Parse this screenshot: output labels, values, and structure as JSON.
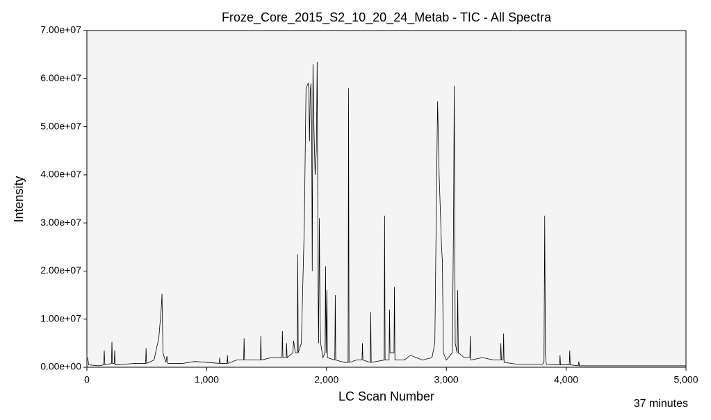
{
  "chart_data": {
    "type": "line",
    "title": "Froze_Core_2015_S2_10_20_24_Metab - TIC - All Spectra",
    "x_label": "LC Scan Number",
    "y_label": "Intensity",
    "annotation": "37 minutes",
    "color": "#000000",
    "background": "#f4f4f4",
    "xlim": [
      0,
      5000
    ],
    "xticks": [
      0,
      {
        "value": 1000,
        "label": "1,000"
      },
      {
        "value": 2000,
        "label": "2,000"
      },
      {
        "value": 3000,
        "label": "3,000"
      },
      {
        "value": 4000,
        "label": "4,000"
      },
      {
        "value": 5000,
        "label": "5,000"
      }
    ],
    "ylim": [
      0,
      70000000.0
    ],
    "yticks": [
      {
        "value": 0,
        "label": "0.00e+00"
      },
      {
        "value": 10000000.0,
        "label": "1.00e+07"
      },
      {
        "value": 20000000.0,
        "label": "2.00e+07"
      },
      {
        "value": 30000000.0,
        "label": "3.00e+07"
      },
      {
        "value": 40000000.0,
        "label": "4.00e+07"
      },
      {
        "value": 50000000.0,
        "label": "5.00e+07"
      },
      {
        "value": 60000000.0,
        "label": "6.00e+07"
      },
      {
        "value": 70000000.0,
        "label": "7.00e+07"
      }
    ],
    "x": [
      0,
      8,
      15,
      100,
      140,
      145,
      150,
      205,
      209,
      213,
      228,
      232,
      236,
      300,
      400,
      490,
      494,
      498,
      560,
      600,
      620,
      627,
      635,
      660,
      668,
      676,
      800,
      900,
      1105,
      1109,
      1113,
      1170,
      1173,
      1177,
      1250,
      1308,
      1312,
      1316,
      1448,
      1452,
      1456,
      1540,
      1628,
      1632,
      1636,
      1663,
      1667,
      1671,
      1720,
      1725,
      1740,
      1756,
      1760,
      1764,
      1790,
      1815,
      1829,
      1847,
      1852,
      1858,
      1864,
      1870,
      1876,
      1881,
      1887,
      1895,
      1905,
      1915,
      1922,
      1930,
      1934,
      1940,
      1946,
      1951,
      1970,
      1988,
      1992,
      1997,
      2003,
      2008,
      2069,
      2073,
      2077,
      2150,
      2180,
      2184,
      2188,
      2250,
      2296,
      2300,
      2304,
      2365,
      2369,
      2373,
      2481,
      2485,
      2489,
      2522,
      2526,
      2530,
      2563,
      2567,
      2571,
      2650,
      2700,
      2800,
      2880,
      2904,
      2915,
      2927,
      2940,
      2960,
      2967,
      2975,
      3000,
      3050,
      3060,
      3066,
      3074,
      3090,
      3095,
      3100,
      3150,
      3196,
      3200,
      3204,
      3300,
      3400,
      3451,
      3455,
      3460,
      3474,
      3478,
      3482,
      3600,
      3800,
      3815,
      3821,
      3827,
      3835,
      3945,
      3949,
      3953,
      4026,
      4030,
      4034,
      4102,
      4106,
      4110,
      4500,
      5000
    ],
    "values": [
      2000000.0,
      1800000.0,
      500000.0,
      300000.0,
      500000.0,
      3500000.0,
      500000.0,
      800000.0,
      5300000.0,
      800000.0,
      800000.0,
      3500000.0,
      500000.0,
      600000.0,
      800000.0,
      800000.0,
      4000000.0,
      800000.0,
      1500000.0,
      6000000.0,
      12000000.0,
      15300000.0,
      3000000.0,
      1000000.0,
      2300000.0,
      800000.0,
      800000.0,
      1200000.0,
      800000.0,
      2000000.0,
      800000.0,
      800000.0,
      2500000.0,
      800000.0,
      1500000.0,
      1500000.0,
      6000000.0,
      1500000.0,
      1500000.0,
      6500000.0,
      1500000.0,
      2000000.0,
      2000000.0,
      7500000.0,
      2000000.0,
      2000000.0,
      5000000.0,
      2000000.0,
      3000000.0,
      5500000.0,
      3000000.0,
      3000000.0,
      23500000.0,
      3000000.0,
      5000000.0,
      30000000.0,
      58000000.0,
      59000000.0,
      58000000.0,
      47000000.0,
      57000000.0,
      59000000.0,
      50000000.0,
      20000000.0,
      63000000.0,
      50000000.0,
      40000000.0,
      45000000.0,
      63500000.0,
      15000000.0,
      5000000.0,
      31000000.0,
      10000000.0,
      5000000.0,
      2000000.0,
      3000000.0,
      21000000.0,
      3000000.0,
      16000000.0,
      2000000.0,
      1500000.0,
      15000000.0,
      1500000.0,
      1000000.0,
      1000000.0,
      58000000.0,
      1000000.0,
      1500000.0,
      1500000.0,
      5000000.0,
      1500000.0,
      1000000.0,
      11500000.0,
      1000000.0,
      1500000.0,
      31500000.0,
      1500000.0,
      1500000.0,
      12000000.0,
      3000000.0,
      3000000.0,
      16700000.0,
      1500000.0,
      1500000.0,
      2500000.0,
      1500000.0,
      2000000.0,
      5000000.0,
      30000000.0,
      55300000.0,
      40000000.0,
      25000000.0,
      22000000.0,
      3000000.0,
      1500000.0,
      3000000.0,
      30000000.0,
      58500000.0,
      5000000.0,
      3000000.0,
      16000000.0,
      3000000.0,
      2000000.0,
      2000000.0,
      6500000.0,
      1500000.0,
      2000000.0,
      1500000.0,
      1500000.0,
      5000000.0,
      1500000.0,
      1500000.0,
      7000000.0,
      1000000.0,
      600000.0,
      600000.0,
      1000000.0,
      31500000.0,
      2500000.0,
      600000.0,
      500000.0,
      2500000.0,
      500000.0,
      500000.0,
      3500000.0,
      500000.0,
      300000.0,
      1200000.0,
      300000.0,
      300000.0,
      300000.0
    ]
  }
}
